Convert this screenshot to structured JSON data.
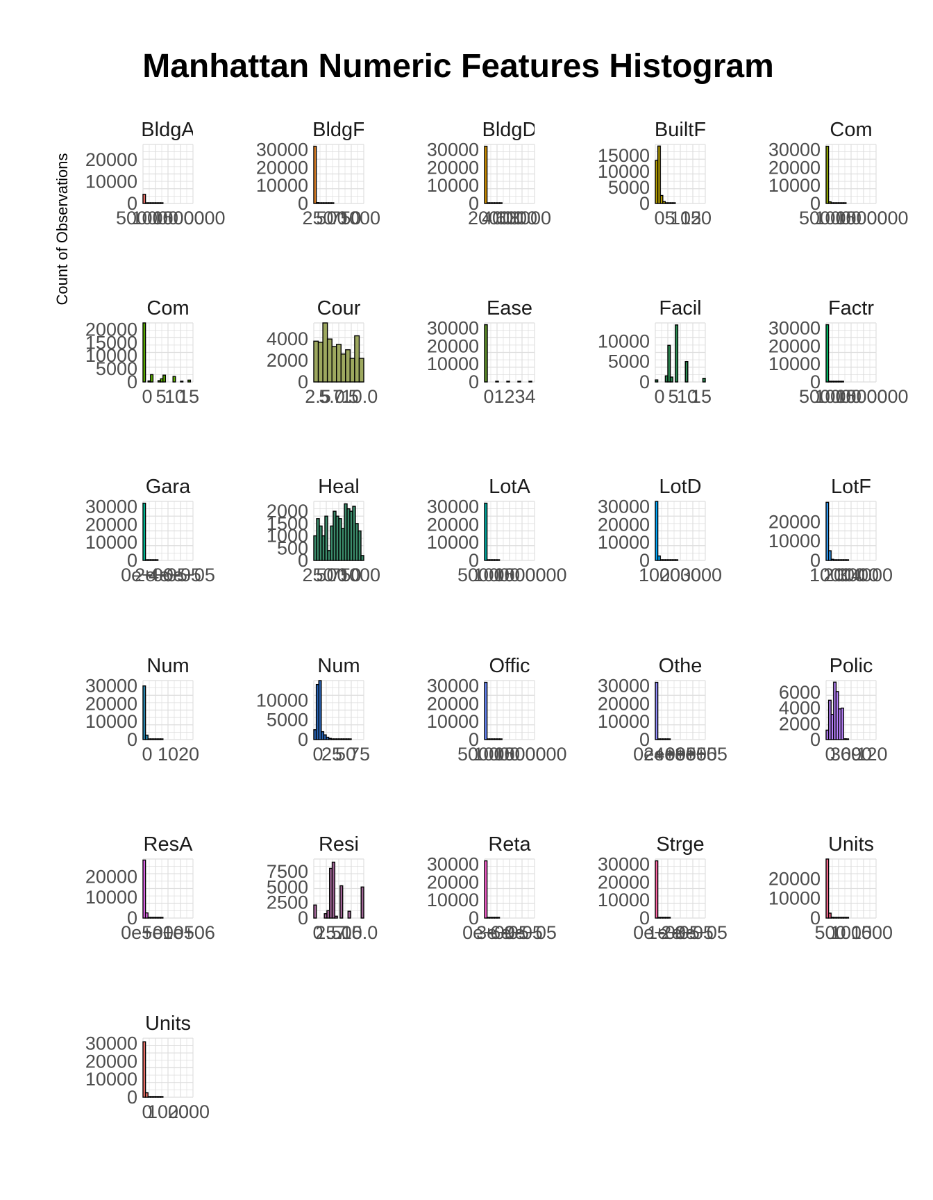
{
  "chart_data": {
    "type": "bar",
    "title": "Manhattan Numeric Features Histogram",
    "ylabel": "Count of Observations",
    "xlabel": "",
    "layout": "facet grid, 5 columns x 6 rows, independent scales",
    "grid": true,
    "panels": [
      {
        "strip": "BldgA",
        "fill": "#f8766d",
        "yticks": [
          "0",
          "10000",
          "20000"
        ],
        "ylim": [
          0,
          27000
        ],
        "xticks": [
          "500000",
          "1000000",
          "1500000"
        ],
        "counts": [
          4200,
          300,
          80,
          30,
          10,
          5,
          2,
          1,
          0,
          0,
          0,
          0,
          0,
          0,
          0,
          0,
          0,
          0,
          0,
          0
        ]
      },
      {
        "strip": "BldgF",
        "fill": "#e88526",
        "yticks": [
          "0",
          "10000",
          "20000",
          "30000"
        ],
        "ylim": [
          0,
          33000
        ],
        "xticks": [
          "250",
          "500",
          "750",
          "1000"
        ],
        "counts": [
          32000,
          500,
          100,
          40,
          10,
          5,
          2,
          1,
          0,
          0,
          0,
          0,
          0,
          0,
          0,
          0,
          0,
          0,
          0,
          0
        ]
      },
      {
        "strip": "BldgD",
        "fill": "#d39200",
        "yticks": [
          "0",
          "10000",
          "20000",
          "30000"
        ],
        "ylim": [
          0,
          33000
        ],
        "xticks": [
          "2000",
          "4000",
          "6000",
          "8000"
        ],
        "counts": [
          32000,
          400,
          80,
          20,
          5,
          2,
          1,
          0,
          0,
          0,
          0,
          0,
          0,
          0,
          0,
          0,
          0,
          0,
          0,
          0
        ]
      },
      {
        "strip": "BuiltF",
        "fill": "#b79f00",
        "yticks": [
          "0",
          "5000",
          "10000",
          "15000"
        ],
        "ylim": [
          0,
          18500
        ],
        "xticks": [
          "0",
          "5",
          "10",
          "15",
          "20"
        ],
        "counts": [
          13500,
          18000,
          2500,
          600,
          100,
          30,
          10,
          5,
          0,
          0,
          0,
          0,
          0,
          0,
          0,
          0,
          0,
          0,
          0,
          0
        ]
      },
      {
        "strip": "Com",
        "fill": "#93aa00",
        "yticks": [
          "0",
          "10000",
          "20000",
          "30000"
        ],
        "ylim": [
          0,
          33000
        ],
        "xticks": [
          "500000",
          "1000000",
          "1500000"
        ],
        "counts": [
          32000,
          900,
          150,
          50,
          20,
          8,
          3,
          1,
          0,
          0,
          0,
          0,
          0,
          0,
          0,
          0,
          0,
          0,
          0,
          0
        ]
      },
      {
        "strip": "Com",
        "fill": "#5eb300",
        "yticks": [
          "0",
          "5000",
          "10000",
          "15000",
          "20000"
        ],
        "ylim": [
          0,
          22500
        ],
        "xticks": [
          "0",
          "5",
          "10",
          "15"
        ],
        "counts": [
          22500,
          0,
          400,
          2800,
          0,
          0,
          500,
          1200,
          2600,
          0,
          0,
          0,
          2100,
          0,
          0,
          300,
          0,
          0,
          700,
          0
        ]
      },
      {
        "strip": "Cour",
        "fill": "#9da85f",
        "yticks": [
          "0",
          "2000",
          "4000"
        ],
        "ylim": [
          0,
          5500
        ],
        "xticks": [
          "2.5",
          "5.0",
          "7.5",
          "10.0"
        ],
        "counts": [
          3800,
          3700,
          5500,
          4000,
          3300,
          3500,
          2600,
          3000,
          2200,
          4300,
          2200
        ]
      },
      {
        "strip": "Ease",
        "fill": "#5e8f2a",
        "yticks": [
          "0",
          "10000",
          "20000",
          "30000"
        ],
        "ylim": [
          0,
          33000
        ],
        "xticks": [
          "0",
          "1",
          "2",
          "3",
          "4"
        ],
        "counts": [
          32000,
          0,
          0,
          0,
          400,
          0,
          0,
          0,
          60,
          0,
          0,
          0,
          10,
          0,
          0,
          0,
          5,
          0
        ]
      },
      {
        "strip": "Facil",
        "fill": "#2c8a52",
        "yticks": [
          "0",
          "5000",
          "10000"
        ],
        "ylim": [
          0,
          14500
        ],
        "xticks": [
          "0",
          "5",
          "10",
          "15"
        ],
        "counts": [
          500,
          0,
          0,
          0,
          1500,
          9000,
          1200,
          0,
          14000,
          0,
          0,
          0,
          5000,
          0,
          0,
          0,
          0,
          0,
          0,
          900
        ]
      },
      {
        "strip": "Factr",
        "fill": "#00be67",
        "yticks": [
          "0",
          "10000",
          "20000",
          "30000"
        ],
        "ylim": [
          0,
          33000
        ],
        "xticks": [
          "500000",
          "1000000",
          "1500000"
        ],
        "counts": [
          32000,
          200,
          50,
          15,
          5,
          2,
          1,
          0,
          0,
          0,
          0,
          0,
          0,
          0,
          0,
          0,
          0,
          0,
          0,
          0
        ]
      },
      {
        "strip": "Gara",
        "fill": "#00c19a",
        "yticks": [
          "0",
          "10000",
          "20000",
          "30000"
        ],
        "ylim": [
          0,
          33000
        ],
        "xticks": [
          "0e+00",
          "2e+05",
          "4e+05",
          "6e+05"
        ],
        "counts": [
          32000,
          80,
          20,
          5,
          2,
          1,
          0,
          0,
          0,
          0,
          0,
          0,
          0,
          0,
          0,
          0,
          0,
          0,
          0,
          0
        ]
      },
      {
        "strip": "Heal",
        "fill": "#3b8a6a",
        "yticks": [
          "0",
          "500",
          "1000",
          "1500",
          "2000"
        ],
        "ylim": [
          0,
          2400
        ],
        "xticks": [
          "250",
          "500",
          "750",
          "1000"
        ],
        "counts": [
          1000,
          1700,
          1400,
          1000,
          1800,
          400,
          1400,
          2000,
          1800,
          1700,
          1300,
          2300,
          2100,
          2000,
          2200,
          1500,
          1200,
          200
        ]
      },
      {
        "strip": "LotA",
        "fill": "#00a9a1",
        "yticks": [
          "0",
          "10000",
          "20000",
          "30000"
        ],
        "ylim": [
          0,
          33000
        ],
        "xticks": [
          "500000",
          "1000000",
          "1500000"
        ],
        "counts": [
          32000,
          100,
          20,
          5,
          2,
          1,
          0,
          0,
          0,
          0,
          0,
          0,
          0,
          0,
          0,
          0,
          0,
          0,
          0,
          0
        ]
      },
      {
        "strip": "LotD",
        "fill": "#00a9ff",
        "yticks": [
          "0",
          "10000",
          "20000",
          "30000"
        ],
        "ylim": [
          0,
          33000
        ],
        "xticks": [
          "1000",
          "2000",
          "3000"
        ],
        "counts": [
          33000,
          2500,
          400,
          100,
          30,
          10,
          5,
          2,
          1,
          0,
          0,
          0,
          0,
          0,
          0,
          0,
          0,
          0,
          0,
          0
        ]
      },
      {
        "strip": "LotF",
        "fill": "#35a2ff",
        "yticks": [
          "0",
          "10000",
          "20000"
        ],
        "ylim": [
          0,
          30500
        ],
        "xticks": [
          "1000",
          "2000",
          "3000",
          "4000"
        ],
        "counts": [
          30000,
          5000,
          600,
          150,
          40,
          10,
          5,
          2,
          1,
          0,
          0,
          0,
          0,
          0,
          0,
          0,
          0,
          0,
          0,
          0
        ]
      },
      {
        "strip": "Num",
        "fill": "#2a8cb7",
        "yticks": [
          "0",
          "10000",
          "20000",
          "30000"
        ],
        "ylim": [
          0,
          33000
        ],
        "xticks": [
          "0",
          "10",
          "20"
        ],
        "counts": [
          30000,
          2500,
          150,
          40,
          10,
          5,
          2,
          1,
          0,
          0,
          0,
          0,
          0,
          0,
          0,
          0,
          0,
          0,
          0,
          0
        ]
      },
      {
        "strip": "Num",
        "fill": "#2a66b8",
        "yticks": [
          "0",
          "5000",
          "10000"
        ],
        "ylim": [
          0,
          15000
        ],
        "xticks": [
          "0",
          "25",
          "50",
          "75"
        ],
        "counts": [
          2500,
          14000,
          15000,
          2000,
          1200,
          600,
          300,
          150,
          80,
          40,
          20,
          10,
          5,
          2,
          1,
          0,
          0,
          0,
          0,
          0
        ]
      },
      {
        "strip": "Offic",
        "fill": "#6b8cff",
        "yticks": [
          "0",
          "10000",
          "20000",
          "30000"
        ],
        "ylim": [
          0,
          33000
        ],
        "xticks": [
          "500000",
          "1000000",
          "1500000"
        ],
        "counts": [
          32000,
          300,
          60,
          20,
          6,
          2,
          1,
          0,
          0,
          0,
          0,
          0,
          0,
          0,
          0,
          0,
          0,
          0,
          0,
          0
        ]
      },
      {
        "strip": "Othe",
        "fill": "#9590ff",
        "yticks": [
          "0",
          "10000",
          "20000",
          "30000"
        ],
        "ylim": [
          0,
          33000
        ],
        "xticks": [
          "0e+00",
          "2e+05",
          "4e+05",
          "6e+05",
          "8e+05"
        ],
        "counts": [
          32000,
          150,
          30,
          8,
          3,
          1,
          0,
          0,
          0,
          0,
          0,
          0,
          0,
          0,
          0,
          0,
          0,
          0,
          0,
          0
        ]
      },
      {
        "strip": "Polic",
        "fill": "#b983ff",
        "yticks": [
          "0",
          "2000",
          "4000",
          "6000"
        ],
        "ylim": [
          0,
          7500
        ],
        "xticks": [
          "0",
          "30",
          "60",
          "90",
          "120"
        ],
        "counts": [
          1200,
          5000,
          3200,
          7300,
          6100,
          3900,
          4000,
          100,
          50,
          0,
          0,
          0,
          0,
          0,
          0,
          0,
          0,
          0,
          0,
          0
        ]
      },
      {
        "strip": "ResA",
        "fill": "#e76bf3",
        "yticks": [
          "0",
          "10000",
          "20000"
        ],
        "ylim": [
          0,
          28500
        ],
        "xticks": [
          "0e+00",
          "5e+05",
          "1e+06"
        ],
        "counts": [
          28000,
          2500,
          300,
          80,
          20,
          5,
          2,
          1,
          0,
          0,
          0,
          0,
          0,
          0,
          0,
          0,
          0,
          0,
          0,
          0
        ]
      },
      {
        "strip": "Resi",
        "fill": "#a06596",
        "yticks": [
          "0",
          "2500",
          "5000",
          "7500"
        ],
        "ylim": [
          0,
          9500
        ],
        "xticks": [
          "0",
          "2.5",
          "5.0",
          "7.5",
          "10.0"
        ],
        "counts": [
          2100,
          0,
          0,
          0,
          700,
          1200,
          8000,
          9000,
          300,
          0,
          5200,
          0,
          0,
          1100,
          0,
          0,
          0,
          0,
          5000
        ]
      },
      {
        "strip": "Reta",
        "fill": "#fd61d1",
        "yticks": [
          "0",
          "10000",
          "20000",
          "30000"
        ],
        "ylim": [
          0,
          33000
        ],
        "xticks": [
          "0e+00",
          "3e+05",
          "6e+05",
          "9e+05"
        ],
        "counts": [
          32000,
          200,
          40,
          10,
          3,
          1,
          0,
          0,
          0,
          0,
          0,
          0,
          0,
          0,
          0,
          0,
          0,
          0,
          0,
          0
        ]
      },
      {
        "strip": "Strge",
        "fill": "#ff67a4",
        "yticks": [
          "0",
          "10000",
          "20000",
          "30000"
        ],
        "ylim": [
          0,
          33000
        ],
        "xticks": [
          "0e+00",
          "1e+05",
          "2e+05",
          "3e+05"
        ],
        "counts": [
          32000,
          150,
          30,
          8,
          2,
          1,
          0,
          0,
          0,
          0,
          0,
          0,
          0,
          0,
          0,
          0,
          0,
          0,
          0,
          0
        ]
      },
      {
        "strip": "Units",
        "fill": "#ff6c91",
        "yticks": [
          "0",
          "10000",
          "20000"
        ],
        "ylim": [
          0,
          30000
        ],
        "xticks": [
          "500",
          "1000",
          "1500"
        ],
        "counts": [
          30000,
          2500,
          400,
          100,
          30,
          10,
          5,
          2,
          1,
          0,
          0,
          0,
          0,
          0,
          0,
          0,
          0,
          0,
          0,
          0
        ]
      },
      {
        "strip": "Units",
        "fill": "#f8766d",
        "yticks": [
          "0",
          "10000",
          "20000",
          "30000"
        ],
        "ylim": [
          0,
          33000
        ],
        "xticks": [
          "0",
          "1000",
          "2000"
        ],
        "counts": [
          31000,
          2500,
          300,
          80,
          20,
          5,
          2,
          1,
          0,
          0,
          0,
          0,
          0,
          0,
          0,
          0,
          0,
          0,
          0,
          0
        ]
      }
    ]
  }
}
